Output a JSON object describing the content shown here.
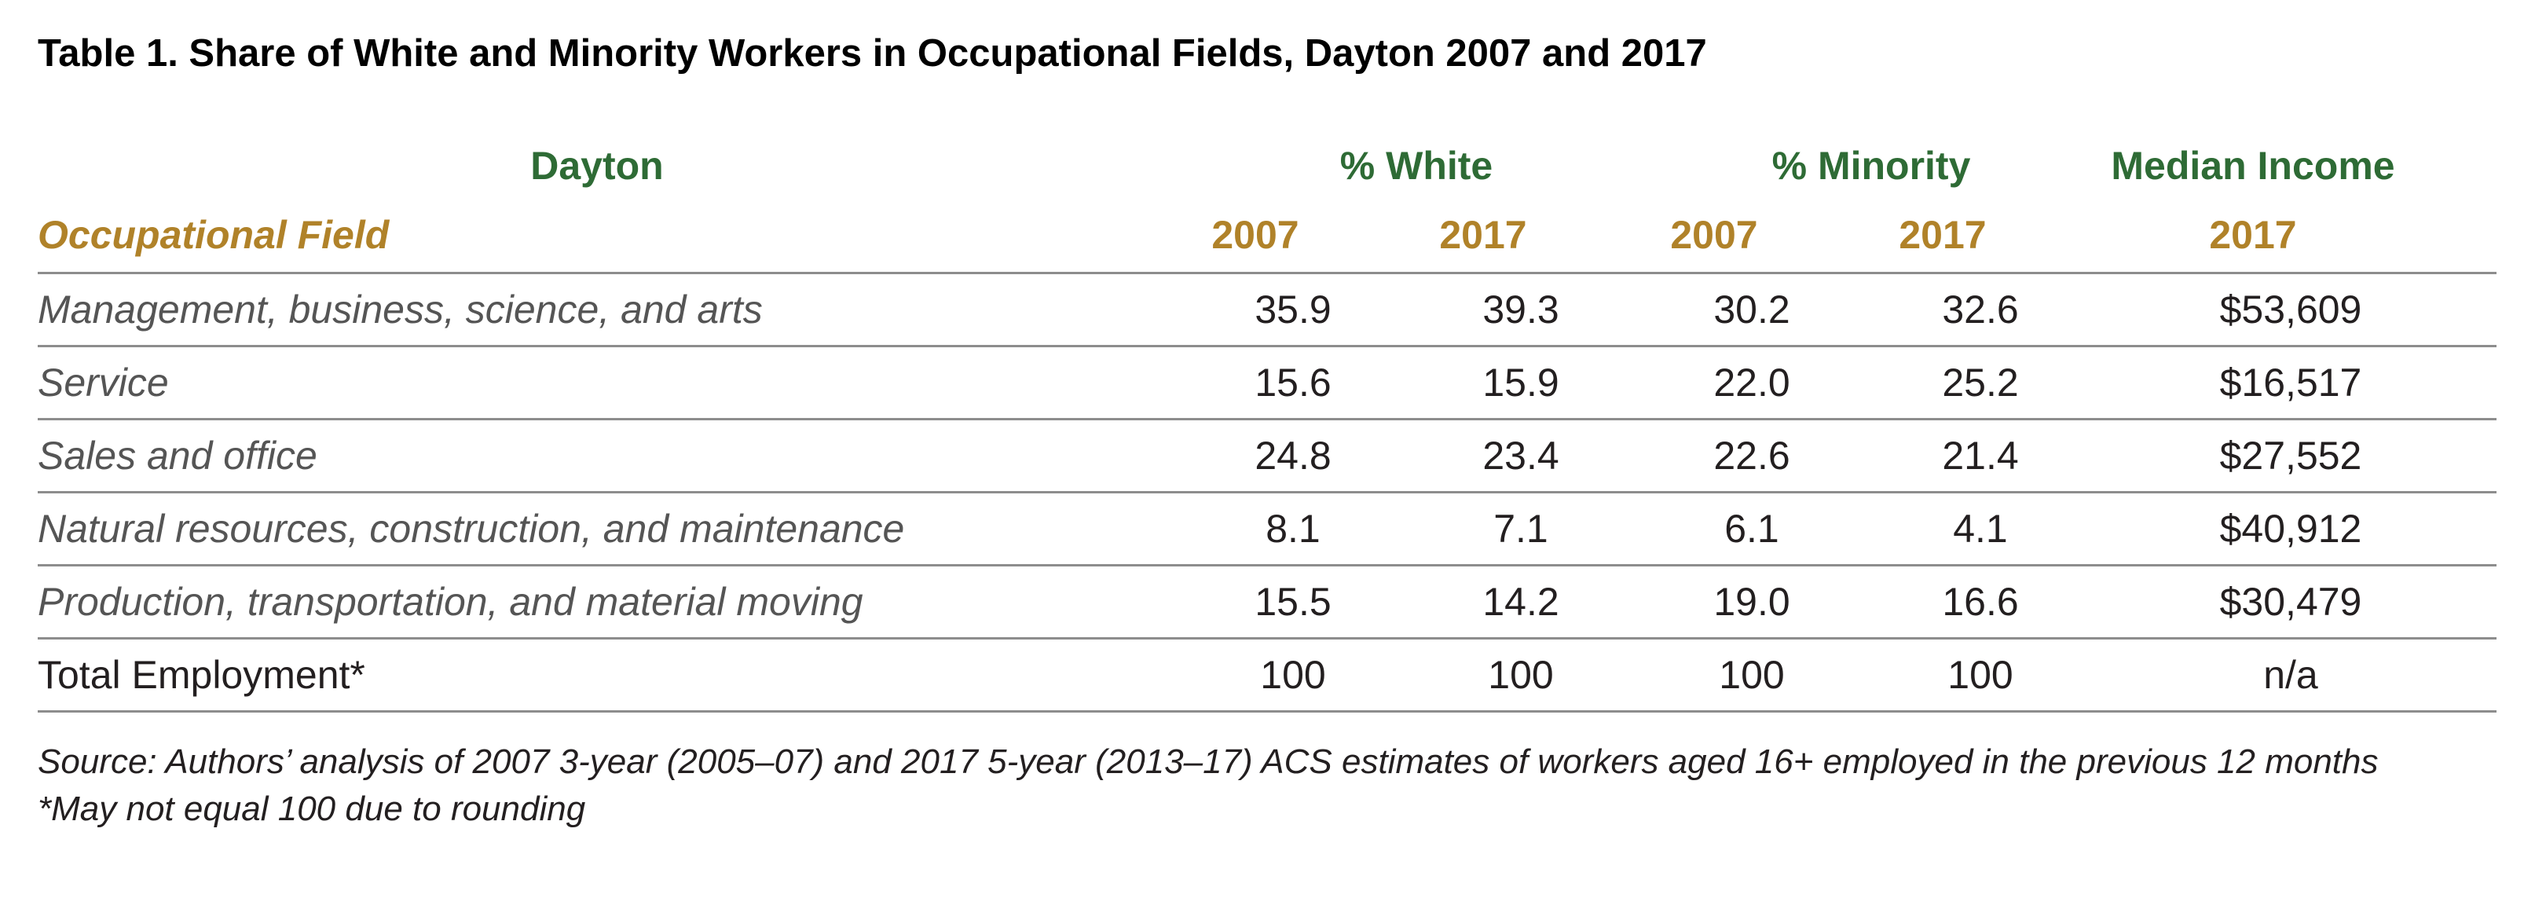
{
  "title": "Table 1. Share of White and Minority Workers in Occupational Fields, Dayton 2007 and 2017",
  "header": {
    "region": "Dayton",
    "group_white": "% White",
    "group_minority": "% Minority",
    "group_income": "Median Income",
    "field_label": "Occupational Field",
    "years": [
      "2007",
      "2017",
      "2007",
      "2017",
      "2017"
    ]
  },
  "rows": [
    {
      "label": "Management, business, science, and arts",
      "values": [
        "35.9",
        "39.3",
        "30.2",
        "32.6",
        "$53,609"
      ]
    },
    {
      "label": "Service",
      "values": [
        "15.6",
        "15.9",
        "22.0",
        "25.2",
        "$16,517"
      ]
    },
    {
      "label": "Sales and office",
      "values": [
        "24.8",
        "23.4",
        "22.6",
        "21.4",
        "$27,552"
      ]
    },
    {
      "label": "Natural resources, construction, and maintenance",
      "values": [
        "8.1",
        "7.1",
        "6.1",
        "4.1",
        "$40,912"
      ]
    },
    {
      "label": "Production, transportation, and material moving",
      "values": [
        "15.5",
        "14.2",
        "19.0",
        "16.6",
        "$30,479"
      ]
    },
    {
      "label": "Total Employment*",
      "values": [
        "100",
        "100",
        "100",
        "100",
        "n/a"
      ]
    }
  ],
  "notes": {
    "source": "Source: Authors’ analysis of 2007 3-year (2005–07) and 2017 5-year (2013–17) ACS estimates of workers aged 16+ employed in the previous 12 months",
    "footnote": "*May not equal 100 due to rounding"
  },
  "colors": {
    "header_green": "#2e6b35",
    "header_gold": "#b08229",
    "rule_gray": "#8d8d8d"
  }
}
